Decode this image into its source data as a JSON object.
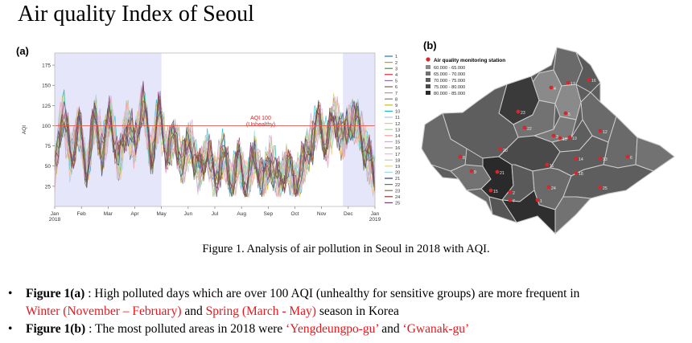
{
  "title": "Air quality Index of Seoul",
  "panel_a": {
    "label": "(a)",
    "annotation_line1": "AQI 100",
    "annotation_line2": "(Unhealthy)",
    "colors": [
      "#1f77b4",
      "#ff7f0e",
      "#2ca02c",
      "#d62728",
      "#9467bd",
      "#8c564b",
      "#e377c2",
      "#7f7f7f",
      "#bcbd22",
      "#17becf",
      "#aec7e8",
      "#ffbb78",
      "#98df8a",
      "#ff9896",
      "#c5b0d5",
      "#c49c94",
      "#f7b6d2",
      "#c7c7c7",
      "#dbdb8d",
      "#9edae5",
      "#393b79",
      "#637939",
      "#8c6d31",
      "#843c39",
      "#7b4173"
    ]
  },
  "chart_data": {
    "type": "line",
    "title": "",
    "xlabel": "",
    "ylabel": "AQI",
    "ylim": [
      0,
      190
    ],
    "yticks": [
      25,
      50,
      75,
      100,
      125,
      150,
      175
    ],
    "xticks": [
      "Jan\n2018",
      "Feb",
      "Mar",
      "Apr",
      "May",
      "Jun",
      "Jul",
      "Aug",
      "Sep",
      "Oct",
      "Nov",
      "Dec",
      "Jan\n2019"
    ],
    "threshold": 100,
    "highlight_ranges": [
      [
        "Jan",
        "May"
      ],
      [
        "Nov",
        "Jan 2019"
      ]
    ],
    "legend": [
      "1",
      "2",
      "3",
      "4",
      "5",
      "6",
      "7",
      "8",
      "9",
      "10",
      "11",
      "12",
      "13",
      "14",
      "15",
      "16",
      "17",
      "18",
      "19",
      "20",
      "21",
      "22",
      "23",
      "24",
      "25"
    ],
    "legend_position": "right",
    "series_count": 25,
    "envelope": {
      "x_month": [
        0,
        0.3,
        0.6,
        0.9,
        1.2,
        1.5,
        1.8,
        2.1,
        2.4,
        2.7,
        3.0,
        3.3,
        3.6,
        3.9,
        4.2,
        4.5,
        4.8,
        5.1,
        5.4,
        5.7,
        6.0,
        6.3,
        6.6,
        6.9,
        7.2,
        7.5,
        7.8,
        8.1,
        8.4,
        8.7,
        9.0,
        9.3,
        9.6,
        9.9,
        10.2,
        10.5,
        10.8,
        11.1,
        11.4,
        11.7,
        12.0
      ],
      "y": [
        60,
        170,
        80,
        145,
        60,
        155,
        95,
        160,
        70,
        150,
        100,
        185,
        85,
        160,
        95,
        120,
        75,
        115,
        55,
        100,
        45,
        95,
        40,
        80,
        35,
        90,
        40,
        85,
        35,
        75,
        40,
        70,
        110,
        150,
        105,
        160,
        115,
        150,
        140,
        90,
        50
      ]
    }
  },
  "panel_b": {
    "label": "(b)",
    "legend_title": "Air quality monitoring station",
    "legend_items": [
      {
        "label": "60.000 - 65.000",
        "color": "#8a8a8a"
      },
      {
        "label": "65.000 - 70.000",
        "color": "#727272"
      },
      {
        "label": "70.000 - 75.000",
        "color": "#5e5e5e"
      },
      {
        "label": "75.000 - 80.000",
        "color": "#4a4a4a"
      },
      {
        "label": "80.000 - 85.000",
        "color": "#2a2a2a"
      }
    ],
    "station_color": "#d9262b"
  },
  "caption": "Figure 1. Analysis of air pollution in Seoul in 2018 with AQI.",
  "bullets": [
    {
      "marker": "•",
      "bold": "Figure 1(a)",
      "text1": " :  High polluted days which are over 100 AQI (unhealthy for sensitive groups) are more frequent in",
      "red1": "Winter (November – February)",
      "text2": " and ",
      "red2": "Spring (March - May)",
      "text3": " season in Korea"
    },
    {
      "marker": "•",
      "bold": "Figure 1(b)",
      "text1": " : The most polluted areas in 2018 were ",
      "red1": "‘Yengdeungpo-gu’",
      "text2": " and ",
      "red2": "‘Gwanak-gu’"
    }
  ]
}
